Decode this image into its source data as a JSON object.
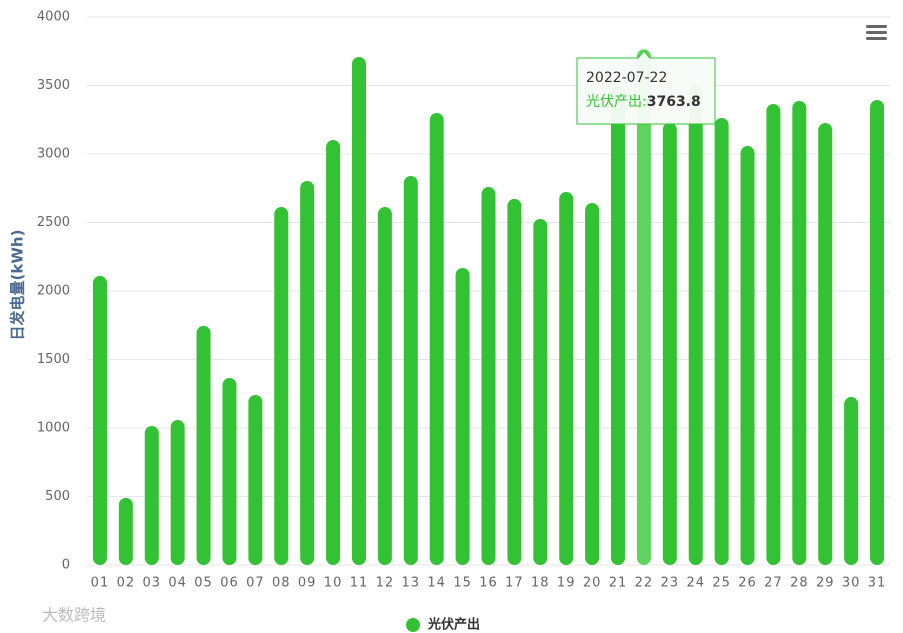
{
  "chart_data": {
    "type": "bar",
    "y_label": "日发电量(kWh)",
    "categories": [
      "01",
      "02",
      "03",
      "04",
      "05",
      "06",
      "07",
      "08",
      "09",
      "10",
      "11",
      "12",
      "13",
      "14",
      "15",
      "16",
      "17",
      "18",
      "19",
      "20",
      "21",
      "22",
      "23",
      "24",
      "25",
      "26",
      "27",
      "28",
      "29",
      "30",
      "31"
    ],
    "series": [
      {
        "name": "光伏产出",
        "color": "#33c233",
        "values": [
          2110,
          490,
          1015,
          1058,
          1745,
          1365,
          1241,
          2613,
          2803,
          3102,
          3708,
          2613,
          2839,
          3299,
          2168,
          2759,
          2672,
          2526,
          2723,
          2642,
          3500,
          3763.8,
          3230,
          3500,
          3263,
          3058,
          3365,
          3387,
          3226,
          1226,
          3394
        ]
      }
    ],
    "ylim": [
      0,
      4000
    ],
    "yticks": [
      0,
      500,
      1000,
      1500,
      2000,
      2500,
      3000,
      3500,
      4000
    ],
    "grid": true,
    "highlight_color": "#5fd35f",
    "tooltip": {
      "date": "2022-07-22",
      "label": "光伏产出:"
    },
    "watermark": "大数跨境"
  }
}
